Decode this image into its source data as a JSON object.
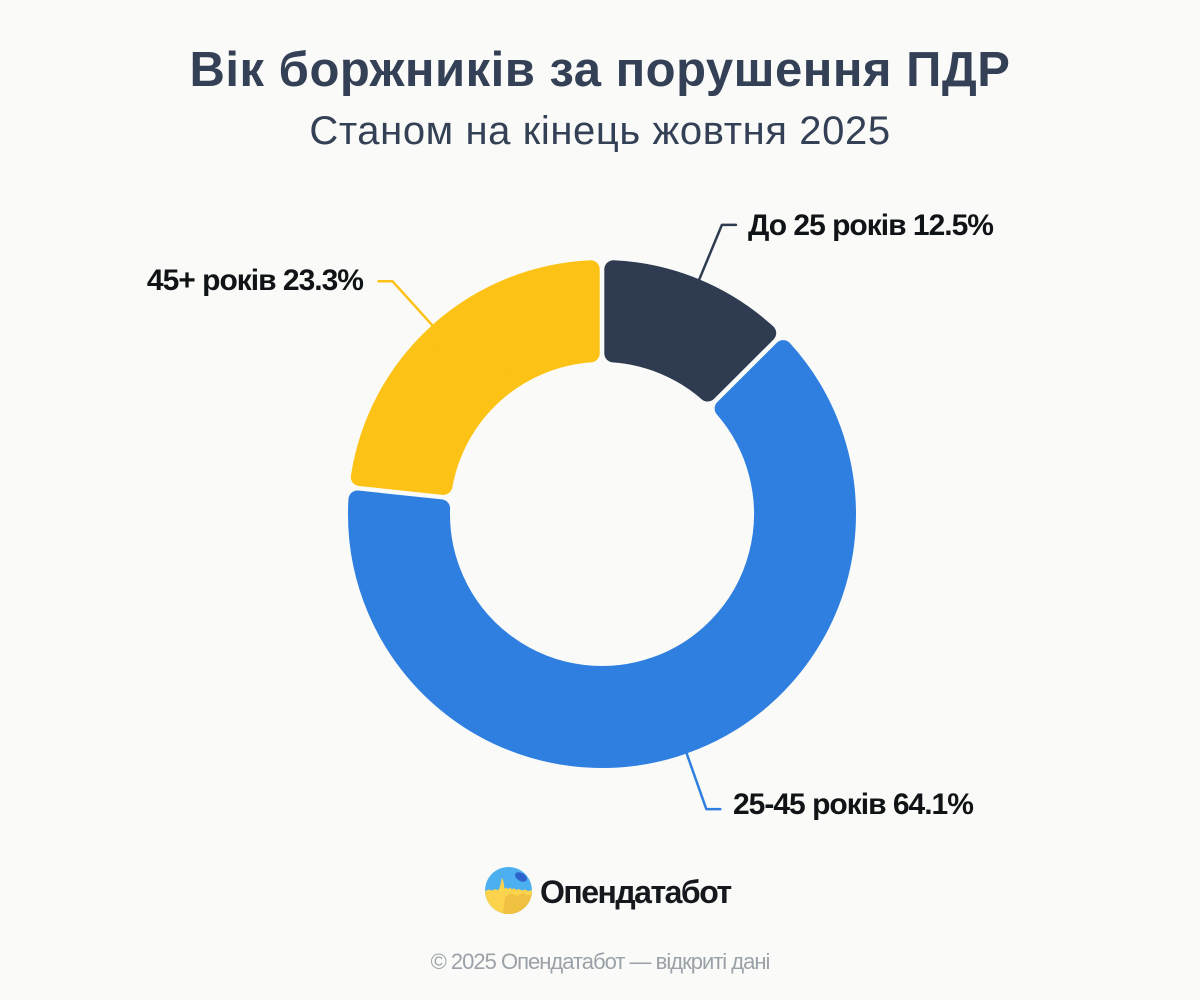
{
  "page": {
    "background": "#fafbf8",
    "title": "Вік боржників за порушення ПДР",
    "subtitle": "Станом на кінець жовтня 2025",
    "footer": "© 2025 Опендатабот — відкриті дані"
  },
  "brand": {
    "name": "Опендатабот",
    "icon": "opendatabot-logo-icon",
    "icon_colors": {
      "sky": "#4cb0f0",
      "accent_blue": "#2e63cd",
      "sun_light": "#fcd34d",
      "sun_dark": "#f0c040"
    }
  },
  "chart_data": {
    "type": "pie",
    "subtype": "donut",
    "title": "Вік боржників за порушення ПДР",
    "subtitle": "Станом на кінець жовтня 2025",
    "unit": "%",
    "clockwise": true,
    "start_angle_deg": 0,
    "segments": [
      {
        "label": "До 25 років",
        "value": 12.5,
        "color": "#2e3b50"
      },
      {
        "label": "25-45 років",
        "value": 64.1,
        "color": "#2f7fe0"
      },
      {
        "label": "45+ років",
        "value": 23.3,
        "color": "#fdc216"
      }
    ]
  }
}
